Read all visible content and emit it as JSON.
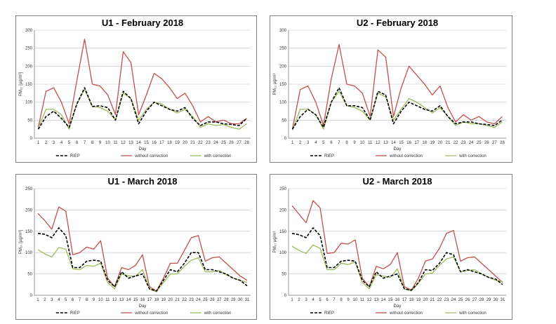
{
  "chart_data": [
    {
      "type": "line",
      "title": "U1 - February 2018",
      "xlabel": "Day",
      "ylabel": "PM₁₀ [µg/m³]",
      "ylim": [
        0,
        300
      ],
      "yticks": [
        0,
        50,
        100,
        150,
        200,
        250,
        300
      ],
      "grid": true,
      "legend": "bottom",
      "categories": [
        "1",
        "2",
        "3",
        "4",
        "5",
        "6",
        "7",
        "8",
        "9",
        "10",
        "11",
        "12",
        "13",
        "14",
        "15",
        "16",
        "17",
        "18",
        "19",
        "20",
        "21",
        "22",
        "23",
        "24",
        "25",
        "26",
        "27",
        "28"
      ],
      "series": [
        {
          "name": "RIEP",
          "color": "#000000",
          "dash": true,
          "values": [
            25,
            60,
            75,
            55,
            30,
            95,
            140,
            88,
            90,
            85,
            50,
            130,
            110,
            40,
            75,
            100,
            90,
            80,
            75,
            85,
            55,
            35,
            45,
            45,
            40,
            38,
            35,
            55
          ]
        },
        {
          "name": "without correction",
          "color": "#c0504d",
          "dash": false,
          "values": [
            30,
            130,
            140,
            100,
            40,
            160,
            275,
            150,
            145,
            120,
            65,
            240,
            210,
            65,
            120,
            180,
            165,
            140,
            110,
            125,
            90,
            45,
            60,
            45,
            50,
            40,
            40,
            55
          ]
        },
        {
          "name": "with correction",
          "color": "#9bbb59",
          "dash": false,
          "values": [
            28,
            80,
            80,
            65,
            25,
            95,
            135,
            88,
            85,
            75,
            50,
            125,
            110,
            50,
            80,
            100,
            95,
            80,
            70,
            80,
            60,
            30,
            40,
            35,
            38,
            30,
            25,
            40
          ]
        }
      ]
    },
    {
      "type": "line",
      "title": "U2 - February 2018",
      "xlabel": "Day",
      "ylabel": "PM₁₀ µg/m³",
      "ylim": [
        0,
        300
      ],
      "yticks": [
        0,
        50,
        100,
        150,
        200,
        250,
        300
      ],
      "grid": true,
      "legend": "bottom",
      "categories": [
        "1",
        "2",
        "3",
        "4",
        "5",
        "6",
        "7",
        "8",
        "9",
        "10",
        "11",
        "12",
        "13",
        "14",
        "15",
        "16",
        "17",
        "18",
        "19",
        "20",
        "21",
        "22",
        "23",
        "24",
        "25",
        "26",
        "27",
        "28"
      ],
      "series": [
        {
          "name": "RIEP",
          "color": "#000000",
          "dash": true,
          "values": [
            25,
            60,
            80,
            65,
            30,
            100,
            140,
            90,
            90,
            85,
            50,
            130,
            120,
            40,
            75,
            100,
            90,
            80,
            75,
            90,
            60,
            40,
            45,
            45,
            40,
            38,
            35,
            50
          ]
        },
        {
          "name": "without correction",
          "color": "#c0504d",
          "dash": false,
          "values": [
            25,
            135,
            145,
            100,
            35,
            165,
            260,
            150,
            145,
            125,
            60,
            245,
            225,
            60,
            140,
            200,
            175,
            150,
            120,
            145,
            85,
            45,
            65,
            50,
            60,
            45,
            40,
            60
          ]
        },
        {
          "name": "with correction",
          "color": "#9bbb59",
          "dash": false,
          "values": [
            22,
            80,
            80,
            65,
            25,
            100,
            130,
            90,
            85,
            75,
            50,
            125,
            115,
            50,
            80,
            110,
            100,
            85,
            70,
            85,
            60,
            35,
            45,
            40,
            40,
            35,
            30,
            45
          ]
        }
      ]
    },
    {
      "type": "line",
      "title": "U1 - March 2018",
      "xlabel": "Day",
      "ylabel": "PM₁₀ [µg/m³]",
      "ylim": [
        0,
        250
      ],
      "yticks": [
        0,
        50,
        100,
        150,
        200,
        250
      ],
      "grid": true,
      "legend": "bottom",
      "categories": [
        "1",
        "2",
        "3",
        "4",
        "5",
        "6",
        "7",
        "8",
        "9",
        "10",
        "11",
        "12",
        "13",
        "14",
        "15",
        "16",
        "17",
        "18",
        "19",
        "20",
        "21",
        "22",
        "23",
        "24",
        "25",
        "26",
        "27",
        "28",
        "29",
        "30",
        "31"
      ],
      "series": [
        {
          "name": "RIEP",
          "color": "#000000",
          "dash": true,
          "values": [
            145,
            143,
            135,
            158,
            140,
            65,
            65,
            80,
            82,
            80,
            35,
            20,
            55,
            40,
            45,
            50,
            15,
            10,
            35,
            60,
            55,
            75,
            100,
            100,
            60,
            60,
            55,
            50,
            40,
            35,
            22
          ]
        },
        {
          "name": "without correction",
          "color": "#c0504d",
          "dash": false,
          "values": [
            192,
            175,
            155,
            207,
            197,
            95,
            100,
            113,
            108,
            128,
            40,
            20,
            65,
            60,
            70,
            95,
            20,
            10,
            40,
            75,
            75,
            105,
            135,
            140,
            80,
            88,
            90,
            75,
            60,
            45,
            35
          ]
        },
        {
          "name": "with correction",
          "color": "#9bbb59",
          "dash": false,
          "values": [
            107,
            97,
            90,
            112,
            108,
            62,
            60,
            70,
            68,
            75,
            30,
            15,
            50,
            45,
            45,
            60,
            15,
            8,
            30,
            50,
            50,
            68,
            82,
            88,
            55,
            55,
            58,
            48,
            40,
            35,
            30
          ]
        }
      ]
    },
    {
      "type": "line",
      "title": "U2 - March 2018",
      "xlabel": "Day",
      "ylabel": "PM₁₀ µg/m³",
      "ylim": [
        0,
        250
      ],
      "yticks": [
        0,
        50,
        100,
        150,
        200,
        250
      ],
      "grid": true,
      "legend": "bottom",
      "categories": [
        "1",
        "2",
        "3",
        "4",
        "5",
        "6",
        "7",
        "8",
        "9",
        "10",
        "11",
        "12",
        "13",
        "14",
        "15",
        "16",
        "17",
        "18",
        "19",
        "20",
        "21",
        "22",
        "23",
        "24",
        "25",
        "26",
        "27",
        "28",
        "29",
        "30",
        "31"
      ],
      "series": [
        {
          "name": "RIEP",
          "color": "#000000",
          "dash": true,
          "values": [
            145,
            142,
            135,
            158,
            140,
            65,
            65,
            80,
            82,
            80,
            35,
            20,
            55,
            40,
            45,
            50,
            15,
            12,
            30,
            60,
            58,
            75,
            100,
            95,
            55,
            60,
            55,
            50,
            42,
            38,
            25
          ]
        },
        {
          "name": "without correction",
          "color": "#c0504d",
          "dash": false,
          "values": [
            210,
            190,
            170,
            222,
            205,
            98,
            100,
            122,
            120,
            130,
            40,
            20,
            68,
            62,
            72,
            100,
            20,
            12,
            40,
            80,
            85,
            110,
            145,
            152,
            80,
            88,
            90,
            75,
            60,
            45,
            30
          ]
        },
        {
          "name": "with correction",
          "color": "#9bbb59",
          "dash": false,
          "values": [
            115,
            105,
            98,
            118,
            110,
            60,
            60,
            75,
            72,
            78,
            30,
            15,
            48,
            45,
            42,
            62,
            15,
            10,
            28,
            50,
            52,
            70,
            85,
            90,
            55,
            58,
            60,
            50,
            42,
            35,
            32
          ]
        }
      ]
    }
  ]
}
